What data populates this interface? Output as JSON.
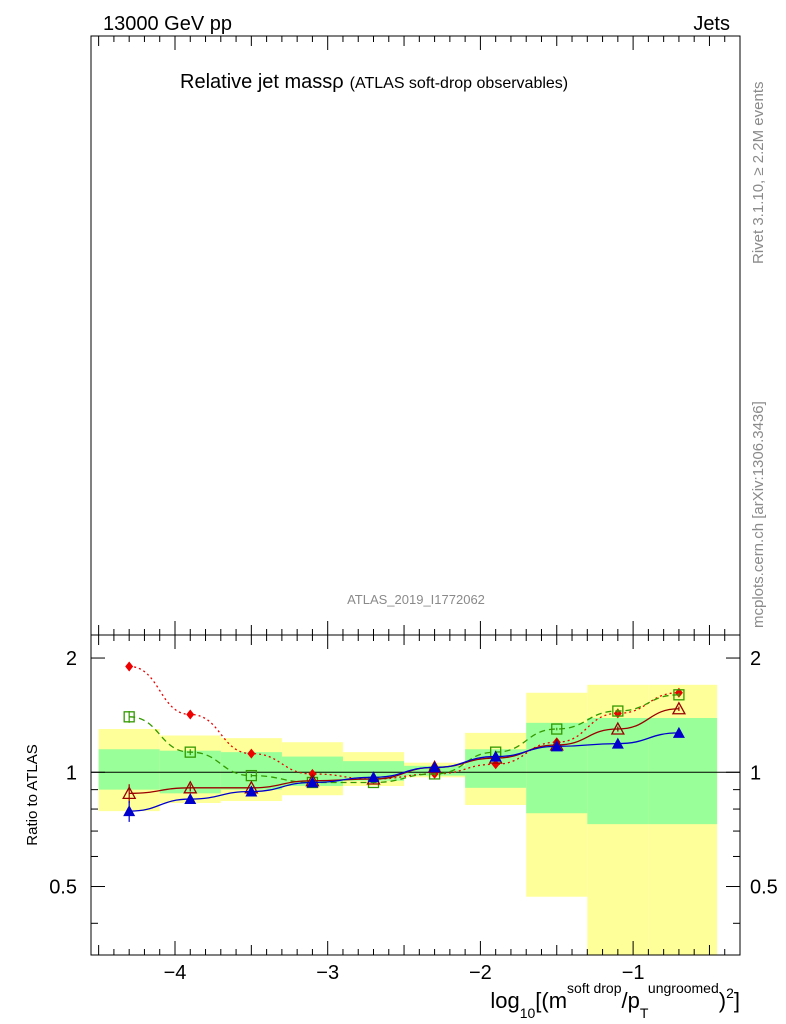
{
  "header": {
    "left": "13000 GeV pp",
    "right": "Jets"
  },
  "main_panel": {
    "title": "Relative jet massρ",
    "subtitle": "(ATLAS soft-drop observables)",
    "analysis_id": "ATLAS_2019_I1772062"
  },
  "side_text": {
    "rivet": "Rivet 3.1.10, ≥ 2.2M events",
    "mcplots": "mcplots.cern.ch [arXiv:1306.3436]"
  },
  "chart_data": {
    "type": "line",
    "ylabel": "Ratio to ATLAS",
    "xlabel_parts": {
      "prefix": "log",
      "sub10": "10",
      "open": "[(m",
      "sup_softdrop": "soft drop",
      "slash_p": "/p",
      "sub_T": "T",
      "sup_ungroomed": "ungroomed",
      "close_paren": ")",
      "sup_2": "2",
      "close_bracket": "]"
    },
    "x_range": [
      -4.55,
      -0.3
    ],
    "y_range": [
      0.33,
      2.3
    ],
    "y_scale": "log",
    "x_ticks": [
      {
        "v": -4,
        "label": "−4"
      },
      {
        "v": -3,
        "label": "−3"
      },
      {
        "v": -2,
        "label": "−2"
      },
      {
        "v": -1,
        "label": "−1"
      }
    ],
    "y_ticks": [
      {
        "v": 0.5,
        "label": "0.5"
      },
      {
        "v": 1,
        "label": "1"
      },
      {
        "v": 2,
        "label": "2"
      }
    ],
    "reference_line": 1,
    "bins": [
      {
        "x0": -4.5,
        "x1": -4.1,
        "g": [
          0.9,
          1.15
        ],
        "y": [
          0.79,
          1.3
        ]
      },
      {
        "x0": -4.1,
        "x1": -3.7,
        "g": [
          0.88,
          1.14
        ],
        "y": [
          0.83,
          1.25
        ]
      },
      {
        "x0": -3.7,
        "x1": -3.3,
        "g": [
          0.9,
          1.13
        ],
        "y": [
          0.84,
          1.23
        ]
      },
      {
        "x0": -3.3,
        "x1": -2.9,
        "g": [
          0.92,
          1.1
        ],
        "y": [
          0.87,
          1.2
        ]
      },
      {
        "x0": -2.9,
        "x1": -2.5,
        "g": [
          0.95,
          1.07
        ],
        "y": [
          0.92,
          1.13
        ]
      },
      {
        "x0": -2.5,
        "x1": -2.1,
        "g": [
          0.98,
          1.04
        ],
        "y": [
          0.97,
          1.06
        ]
      },
      {
        "x0": -2.1,
        "x1": -1.7,
        "g": [
          0.91,
          1.15
        ],
        "y": [
          0.82,
          1.27
        ]
      },
      {
        "x0": -1.7,
        "x1": -1.3,
        "g": [
          0.78,
          1.35
        ],
        "y": [
          0.47,
          1.62
        ]
      },
      {
        "x0": -1.3,
        "x1": -0.9,
        "g": [
          0.73,
          1.39
        ],
        "y": [
          0.33,
          1.7
        ]
      },
      {
        "x0": -0.9,
        "x1": -0.45,
        "g": [
          0.73,
          1.39
        ],
        "y": [
          0.33,
          1.7
        ]
      }
    ],
    "band_colors": {
      "inner": "#99ff99",
      "outer": "#ffff99"
    },
    "series": [
      {
        "color": "#ee0000",
        "dash": "2,3",
        "marker": "diamond",
        "x": [
          -4.3,
          -3.9,
          -3.5,
          -3.1,
          -2.7,
          -2.3,
          -1.9,
          -1.5,
          -1.1,
          -0.7
        ],
        "y": [
          1.9,
          1.42,
          1.12,
          0.99,
          0.96,
          0.99,
          1.05,
          1.2,
          1.43,
          1.62
        ],
        "err": [
          0.05,
          0.02,
          0.01,
          0.01,
          0.01,
          0.01,
          0.01,
          0.01,
          0.02,
          0.02
        ]
      },
      {
        "color": "#339900",
        "dash": "6,4",
        "marker": "open-square",
        "x": [
          -4.3,
          -3.9,
          -3.5,
          -3.1,
          -2.7,
          -2.3,
          -1.9,
          -1.5,
          -1.1,
          -0.7
        ],
        "y": [
          1.4,
          1.13,
          0.98,
          0.94,
          0.94,
          0.99,
          1.13,
          1.3,
          1.45,
          1.6
        ],
        "err": [
          0.05,
          0.02,
          0.01,
          0.01,
          0.01,
          0.01,
          0.01,
          0.01,
          0.02,
          0.02
        ]
      },
      {
        "color": "#990000",
        "dash": "",
        "marker": "open-triangle",
        "x": [
          -4.3,
          -3.9,
          -3.5,
          -3.1,
          -2.7,
          -2.3,
          -1.9,
          -1.5,
          -1.1,
          -0.7
        ],
        "y": [
          0.88,
          0.91,
          0.91,
          0.95,
          0.96,
          1.03,
          1.09,
          1.18,
          1.3,
          1.47
        ],
        "err": [
          0.05,
          0.02,
          0.01,
          0.01,
          0.01,
          0.01,
          0.01,
          0.01,
          0.02,
          0.02
        ]
      },
      {
        "color": "#0000cc",
        "dash": "",
        "marker": "filled-triangle",
        "x": [
          -4.3,
          -3.9,
          -3.5,
          -3.1,
          -2.7,
          -2.3,
          -1.9,
          -1.5,
          -1.1,
          -0.7
        ],
        "y": [
          0.79,
          0.85,
          0.89,
          0.94,
          0.97,
          1.03,
          1.1,
          1.17,
          1.19,
          1.27
        ],
        "err": [
          0.05,
          0.02,
          0.01,
          0.01,
          0.01,
          0.01,
          0.01,
          0.01,
          0.02,
          0.02
        ]
      }
    ]
  }
}
